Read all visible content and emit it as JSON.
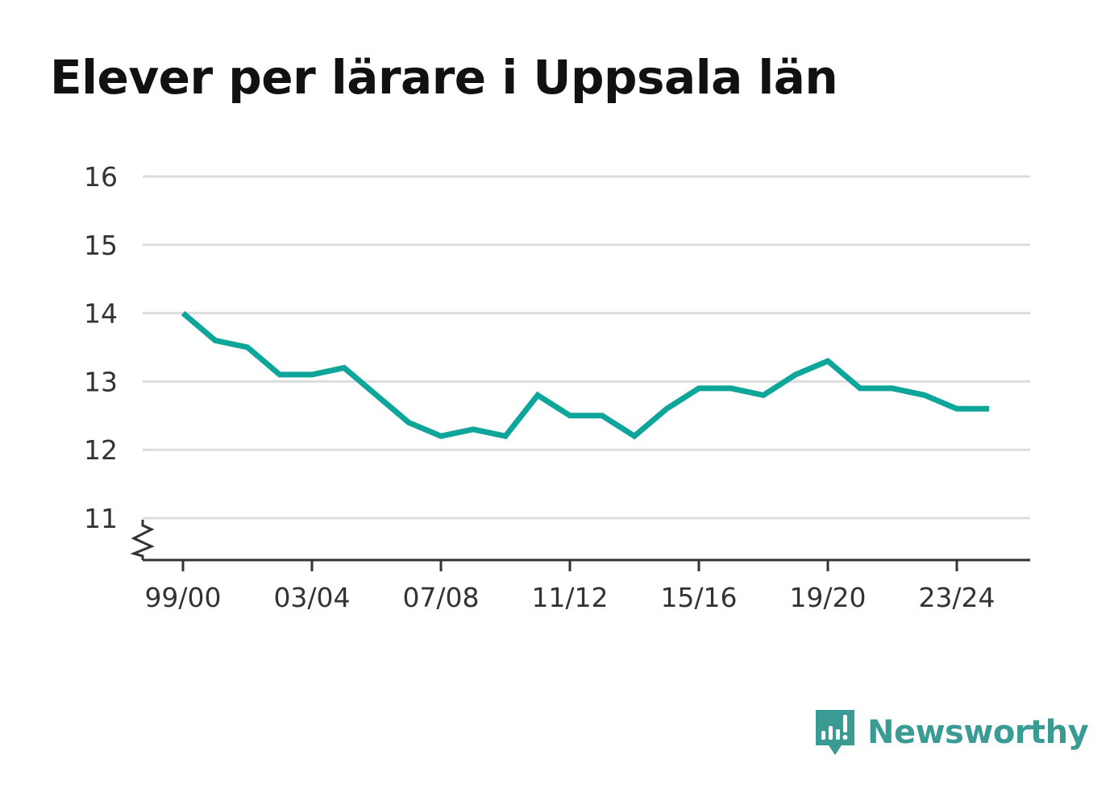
{
  "chart_data": {
    "type": "line",
    "title": "Elever per lärare i Uppsala län",
    "xlabel": "",
    "ylabel": "",
    "ylim": [
      10.4,
      16
    ],
    "y_ticks": [
      11,
      12,
      13,
      14,
      15,
      16
    ],
    "axis_break": true,
    "grid": true,
    "x": [
      "99/00",
      "00/01",
      "01/02",
      "02/03",
      "03/04",
      "04/05",
      "05/06",
      "06/07",
      "07/08",
      "08/09",
      "09/10",
      "10/11",
      "11/12",
      "12/13",
      "13/14",
      "14/15",
      "15/16",
      "16/17",
      "17/18",
      "18/19",
      "19/20",
      "20/21",
      "21/22",
      "22/23",
      "23/24",
      "24/25"
    ],
    "x_tick_labels": [
      "99/00",
      "03/04",
      "07/08",
      "11/12",
      "15/16",
      "19/20",
      "23/24"
    ],
    "series": [
      {
        "color": "#0ea59b",
        "values": [
          14.0,
          13.6,
          13.5,
          13.1,
          13.1,
          13.2,
          12.8,
          12.4,
          12.2,
          12.3,
          12.2,
          12.8,
          12.5,
          12.5,
          12.2,
          12.6,
          12.9,
          12.9,
          12.8,
          13.1,
          13.3,
          12.9,
          12.9,
          12.8,
          12.6,
          12.6
        ]
      }
    ]
  },
  "brand": {
    "name": "Newsworthy",
    "icon": "newsworthy-logo-icon",
    "color": "#3a9b94"
  }
}
